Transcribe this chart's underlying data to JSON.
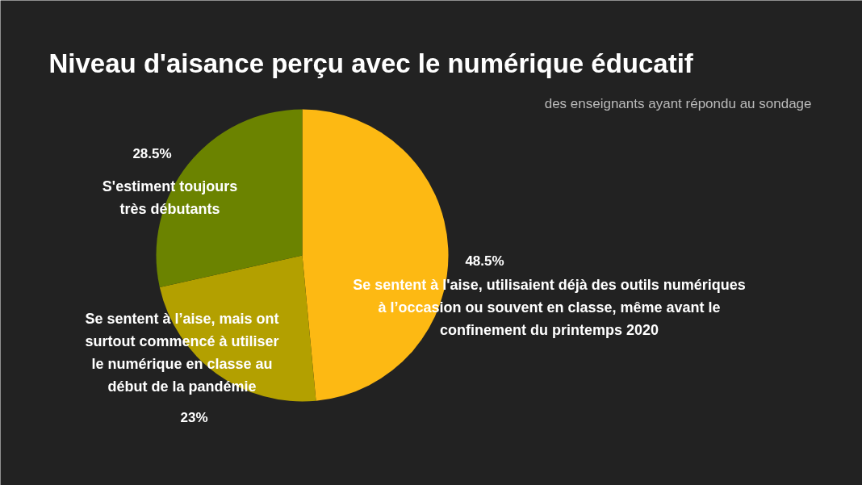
{
  "chart_data": {
    "type": "pie",
    "title": "Niveau d'aisance perçu avec le numérique éducatif",
    "subtitle": "des enseignants ayant répondu au sondage",
    "categories": [
      "Se sentent à l'aise, utilisaient déjà des outils numériques à l’occasion ou souvent en classe, même avant le confinement du printemps 2020",
      "Se sentent à l’aise, mais ont surtout commencé à utiliser le numérique en classe au début de la pandémie",
      "S'estiment toujours très débutants"
    ],
    "values": [
      48.5,
      23,
      28.5
    ],
    "value_labels": [
      "48.5%",
      "23%",
      "28.5%"
    ],
    "colors": [
      "#fdb913",
      "#b3a000",
      "#6b8300"
    ]
  }
}
